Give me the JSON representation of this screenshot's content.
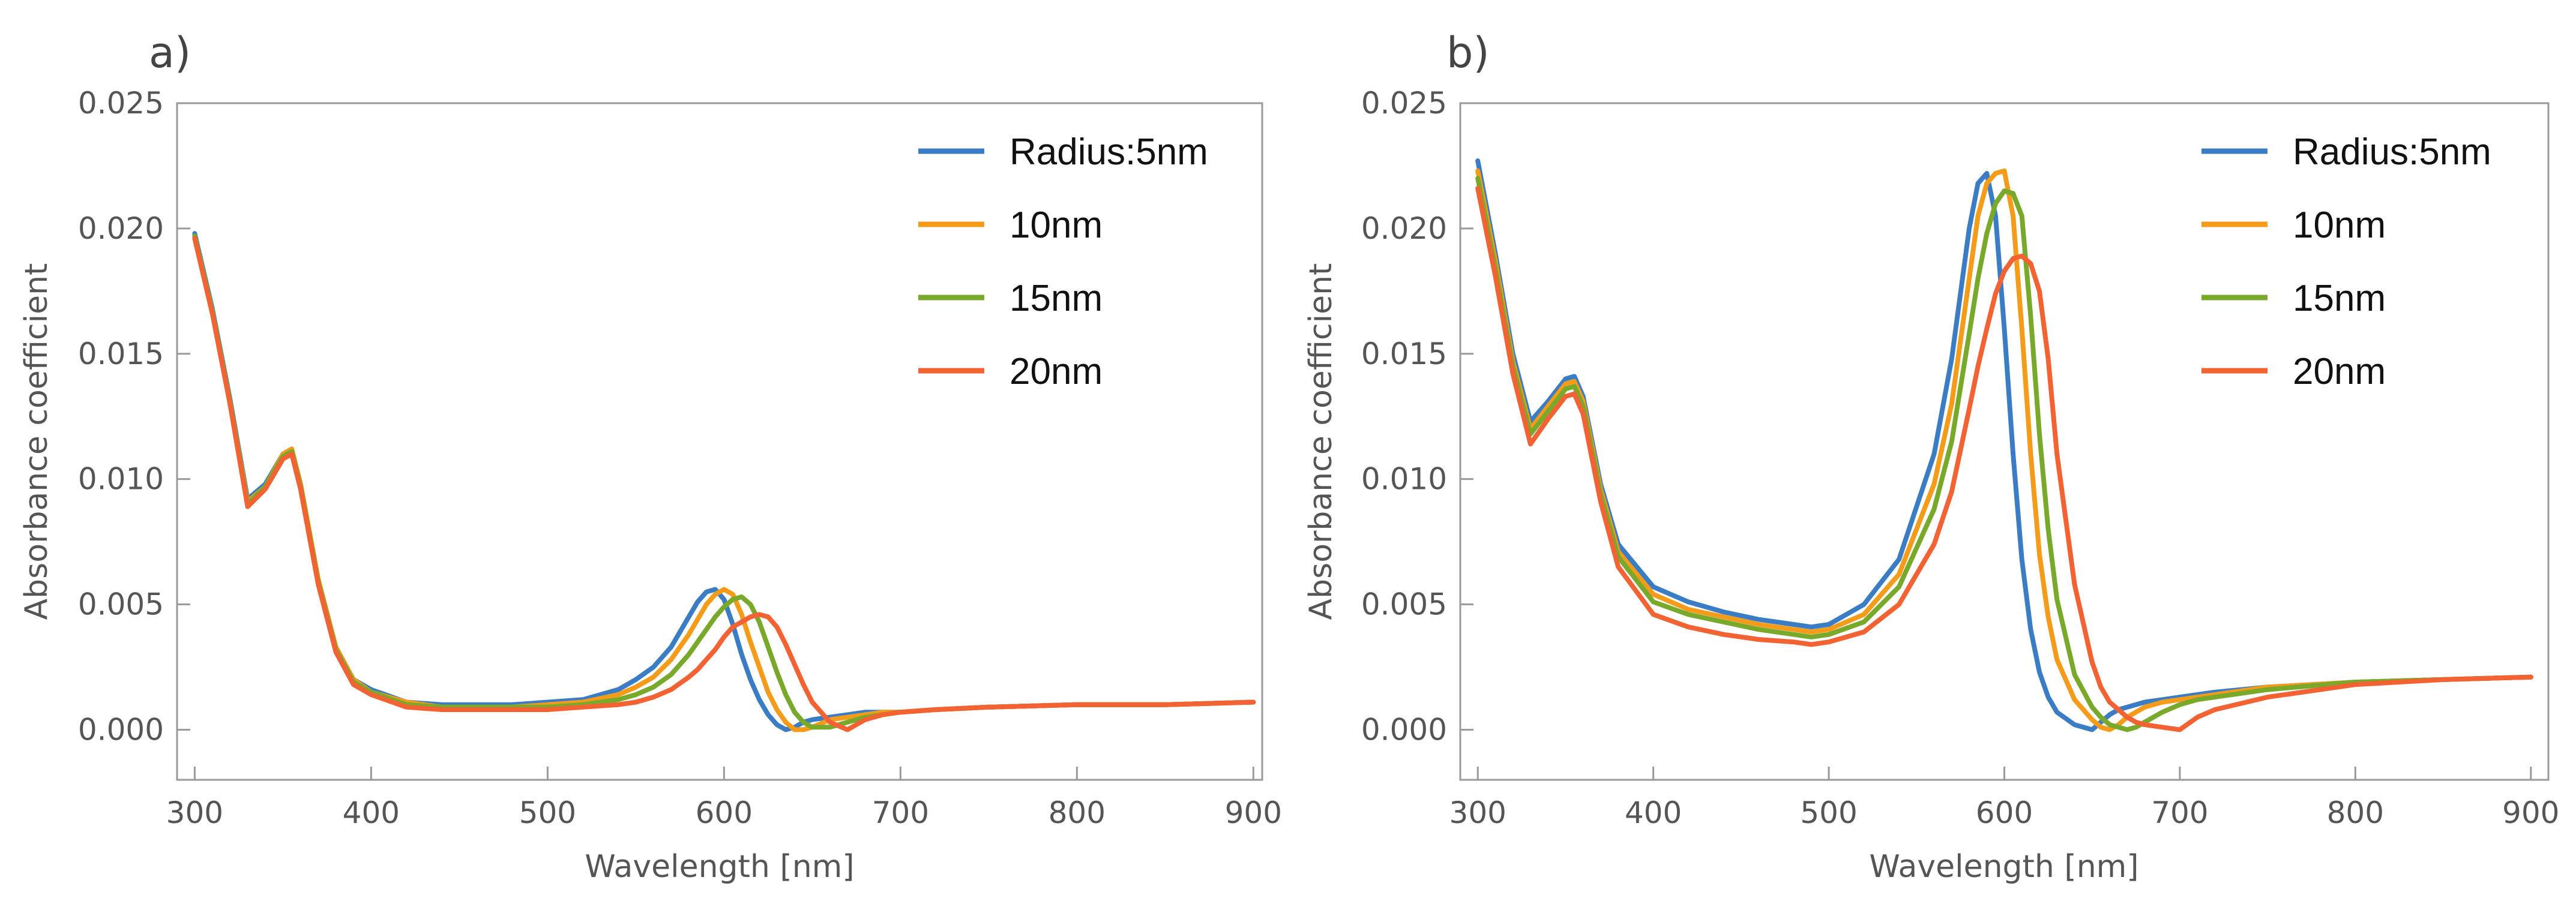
{
  "chart_data": [
    {
      "type": "line",
      "panel_label": "a)",
      "title": "",
      "xlabel": "Wavelength [nm]",
      "ylabel": "Absorbance coefficient",
      "xlim": [
        290,
        905
      ],
      "ylim": [
        -0.002,
        0.025
      ],
      "xticks": [
        "300",
        "400",
        "500",
        "600",
        "700",
        "800",
        "900"
      ],
      "yticks": [
        "0.000",
        "0.005",
        "0.010",
        "0.015",
        "0.020",
        "0.025"
      ],
      "grid": false,
      "legend_position": "top-right",
      "x": [
        300,
        310,
        320,
        330,
        340,
        350,
        355,
        360,
        370,
        380,
        390,
        400,
        420,
        440,
        460,
        480,
        500,
        520,
        540,
        550,
        560,
        570,
        580,
        585,
        590,
        595,
        600,
        605,
        610,
        615,
        620,
        625,
        630,
        635,
        640,
        645,
        650,
        660,
        670,
        680,
        690,
        700,
        720,
        750,
        800,
        850,
        900
      ],
      "series": [
        {
          "name": "Radius:5nm",
          "color": "#3B7DC4",
          "values": [
            0.0198,
            0.0168,
            0.0132,
            0.0092,
            0.0098,
            0.011,
            0.0112,
            0.0098,
            0.006,
            0.0033,
            0.002,
            0.0016,
            0.0011,
            0.001,
            0.001,
            0.001,
            0.0011,
            0.0012,
            0.0016,
            0.002,
            0.0025,
            0.0033,
            0.0045,
            0.0051,
            0.0055,
            0.0056,
            0.0052,
            0.0042,
            0.003,
            0.002,
            0.0012,
            0.0006,
            0.0002,
            0.0,
            0.0001,
            0.0003,
            0.0004,
            0.0005,
            0.0006,
            0.0007,
            0.0007,
            0.0007,
            0.0008,
            0.0009,
            0.001,
            0.001,
            0.0011
          ]
        },
        {
          "name": "10nm",
          "color": "#F59B1A",
          "values": [
            0.0197,
            0.0167,
            0.0131,
            0.0091,
            0.0097,
            0.011,
            0.0112,
            0.0098,
            0.006,
            0.0033,
            0.002,
            0.0015,
            0.0011,
            0.0009,
            0.0009,
            0.0009,
            0.001,
            0.0011,
            0.0014,
            0.0017,
            0.0021,
            0.0028,
            0.0038,
            0.0044,
            0.005,
            0.0054,
            0.0056,
            0.0054,
            0.0046,
            0.0035,
            0.0025,
            0.0015,
            0.0008,
            0.0003,
            0.0,
            0.0,
            0.0001,
            0.0004,
            0.0005,
            0.0006,
            0.0007,
            0.0007,
            0.0008,
            0.0009,
            0.001,
            0.001,
            0.0011
          ]
        },
        {
          "name": "15nm",
          "color": "#78A92A",
          "values": [
            0.0197,
            0.0167,
            0.0131,
            0.009,
            0.0097,
            0.0109,
            0.0111,
            0.0097,
            0.0059,
            0.0032,
            0.0019,
            0.0015,
            0.001,
            0.0009,
            0.0009,
            0.0009,
            0.0009,
            0.001,
            0.0012,
            0.0014,
            0.0017,
            0.0022,
            0.003,
            0.0035,
            0.004,
            0.0045,
            0.0049,
            0.0052,
            0.0053,
            0.005,
            0.0043,
            0.0033,
            0.0023,
            0.0014,
            0.0007,
            0.0003,
            0.0001,
            0.0001,
            0.0003,
            0.0005,
            0.0006,
            0.0007,
            0.0008,
            0.0009,
            0.001,
            0.001,
            0.0011
          ]
        },
        {
          "name": "20nm",
          "color": "#F26232",
          "values": [
            0.0196,
            0.0166,
            0.013,
            0.0089,
            0.0096,
            0.0108,
            0.011,
            0.0096,
            0.0058,
            0.0031,
            0.0018,
            0.0014,
            0.0009,
            0.0008,
            0.0008,
            0.0008,
            0.0008,
            0.0009,
            0.001,
            0.0011,
            0.0013,
            0.0016,
            0.0021,
            0.0024,
            0.0028,
            0.0032,
            0.0037,
            0.0041,
            0.0043,
            0.0045,
            0.0046,
            0.0045,
            0.0041,
            0.0034,
            0.0026,
            0.0018,
            0.0011,
            0.0003,
            0.0,
            0.0004,
            0.0006,
            0.0007,
            0.0008,
            0.0009,
            0.001,
            0.001,
            0.0011
          ]
        }
      ]
    },
    {
      "type": "line",
      "panel_label": "b)",
      "title": "",
      "xlabel": "Wavelength [nm]",
      "ylabel": "Absorbance coefficient",
      "xlim": [
        290,
        910
      ],
      "ylim": [
        -0.002,
        0.025
      ],
      "xticks": [
        "300",
        "400",
        "500",
        "600",
        "700",
        "800",
        "900"
      ],
      "yticks": [
        "0.000",
        "0.005",
        "0.010",
        "0.015",
        "0.020",
        "0.025"
      ],
      "grid": false,
      "legend_position": "top-right",
      "x": [
        300,
        310,
        320,
        330,
        340,
        350,
        355,
        360,
        370,
        380,
        400,
        420,
        440,
        460,
        480,
        490,
        500,
        520,
        540,
        560,
        570,
        580,
        585,
        590,
        595,
        600,
        605,
        610,
        615,
        620,
        625,
        630,
        640,
        650,
        655,
        660,
        665,
        670,
        675,
        680,
        690,
        700,
        710,
        720,
        750,
        800,
        850,
        900
      ],
      "series": [
        {
          "name": "Radius:5nm",
          "color": "#3B7DC4",
          "values": [
            0.0227,
            0.019,
            0.015,
            0.0123,
            0.0131,
            0.014,
            0.0141,
            0.0133,
            0.0098,
            0.0074,
            0.0057,
            0.0051,
            0.0047,
            0.0044,
            0.0042,
            0.0041,
            0.0042,
            0.005,
            0.0068,
            0.011,
            0.0148,
            0.02,
            0.0218,
            0.0222,
            0.0205,
            0.016,
            0.011,
            0.0068,
            0.004,
            0.0023,
            0.0013,
            0.0007,
            0.0002,
            0.0,
            0.0003,
            0.0006,
            0.0008,
            0.0009,
            0.001,
            0.0011,
            0.0012,
            0.0013,
            0.0014,
            0.0015,
            0.0017,
            0.0019,
            0.002,
            0.0021
          ]
        },
        {
          "name": "10nm",
          "color": "#F59B1A",
          "values": [
            0.0223,
            0.0187,
            0.0147,
            0.012,
            0.0129,
            0.0138,
            0.0139,
            0.0131,
            0.0096,
            0.0071,
            0.0054,
            0.0048,
            0.0045,
            0.0042,
            0.004,
            0.0039,
            0.004,
            0.0046,
            0.0062,
            0.0098,
            0.013,
            0.018,
            0.0205,
            0.0218,
            0.0222,
            0.0223,
            0.0205,
            0.016,
            0.011,
            0.007,
            0.0045,
            0.0028,
            0.0012,
            0.0004,
            0.0001,
            0.0,
            0.0002,
            0.0005,
            0.0007,
            0.0009,
            0.0011,
            0.0012,
            0.0013,
            0.0014,
            0.0017,
            0.0019,
            0.002,
            0.0021
          ]
        },
        {
          "name": "15nm",
          "color": "#78A92A",
          "values": [
            0.022,
            0.0184,
            0.0145,
            0.0118,
            0.0127,
            0.0136,
            0.0137,
            0.0129,
            0.0094,
            0.0069,
            0.0051,
            0.0046,
            0.0043,
            0.004,
            0.0038,
            0.0037,
            0.0038,
            0.0043,
            0.0057,
            0.0088,
            0.0115,
            0.0158,
            0.018,
            0.0198,
            0.021,
            0.0215,
            0.0214,
            0.0205,
            0.0165,
            0.0118,
            0.008,
            0.0052,
            0.0022,
            0.0009,
            0.0005,
            0.0002,
            0.0001,
            0.0,
            0.0001,
            0.0003,
            0.0007,
            0.001,
            0.0012,
            0.0013,
            0.0016,
            0.0019,
            0.002,
            0.0021
          ]
        },
        {
          "name": "20nm",
          "color": "#F26232",
          "values": [
            0.0216,
            0.0181,
            0.0142,
            0.0114,
            0.0124,
            0.0133,
            0.0134,
            0.0126,
            0.0091,
            0.0065,
            0.0046,
            0.0041,
            0.0038,
            0.0036,
            0.0035,
            0.0034,
            0.0035,
            0.0039,
            0.005,
            0.0074,
            0.0095,
            0.0128,
            0.0145,
            0.016,
            0.0174,
            0.0183,
            0.0188,
            0.0189,
            0.0186,
            0.0175,
            0.0148,
            0.011,
            0.0058,
            0.0027,
            0.0017,
            0.0011,
            0.0008,
            0.0005,
            0.0003,
            0.0002,
            0.0001,
            0.0,
            0.0005,
            0.0008,
            0.0013,
            0.0018,
            0.002,
            0.0021
          ]
        }
      ]
    }
  ]
}
